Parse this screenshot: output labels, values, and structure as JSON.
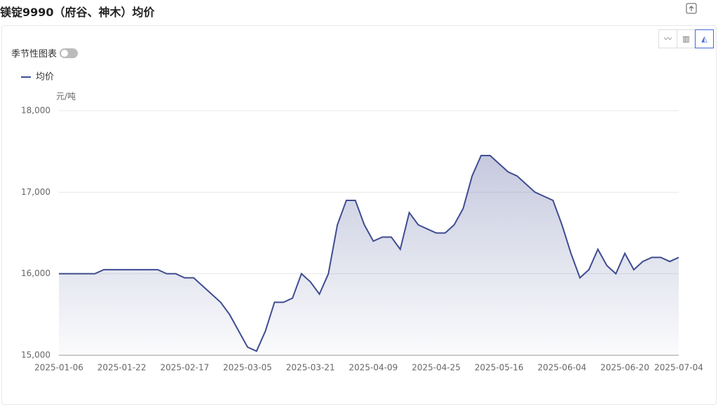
{
  "header": {
    "title": "镁锭9990（府谷、神木）均价"
  },
  "controls": {
    "seasonal_label": "季节性图表"
  },
  "chart_data": {
    "type": "area",
    "unit": "元/吨",
    "categories": [
      "2025-01-06",
      null,
      null,
      null,
      null,
      null,
      null,
      "2025-01-22",
      null,
      null,
      null,
      null,
      null,
      null,
      "2025-02-17",
      null,
      null,
      null,
      null,
      null,
      null,
      "2025-03-05",
      null,
      null,
      null,
      null,
      null,
      null,
      "2025-03-21",
      null,
      null,
      null,
      null,
      null,
      null,
      "2025-04-09",
      null,
      null,
      null,
      null,
      null,
      null,
      "2025-04-25",
      null,
      null,
      null,
      null,
      null,
      null,
      "2025-05-16",
      null,
      null,
      null,
      null,
      null,
      null,
      "2025-06-04",
      null,
      null,
      null,
      null,
      null,
      null,
      "2025-06-20",
      null,
      null,
      null,
      null,
      null,
      "2025-07-04"
    ],
    "series": [
      {
        "name": "均价",
        "color": "#3f4c91",
        "values": [
          16000,
          16000,
          16000,
          16000,
          16000,
          16050,
          16050,
          16050,
          16050,
          16050,
          16050,
          16050,
          16000,
          16000,
          15950,
          15950,
          15850,
          15750,
          15650,
          15500,
          15300,
          15100,
          15050,
          15300,
          15650,
          15650,
          15700,
          16000,
          15900,
          15750,
          16000,
          16600,
          16900,
          16900,
          16600,
          16400,
          16450,
          16450,
          16300,
          16750,
          16600,
          16550,
          16500,
          16500,
          16600,
          16800,
          17200,
          17450,
          17450,
          17350,
          17250,
          17200,
          17100,
          17000,
          16950,
          16900,
          16600,
          16250,
          15950,
          16050,
          16300,
          16100,
          16000,
          16250,
          16050,
          16150,
          16200,
          16200,
          16150,
          16200
        ]
      }
    ],
    "ylim": [
      15000,
      18000
    ],
    "yticks": [
      {
        "value": 15000,
        "label": "15,000"
      },
      {
        "value": 16000,
        "label": "16,000"
      },
      {
        "value": 17000,
        "label": "17,000"
      },
      {
        "value": 18000,
        "label": "18,000"
      }
    ],
    "grid": true
  }
}
